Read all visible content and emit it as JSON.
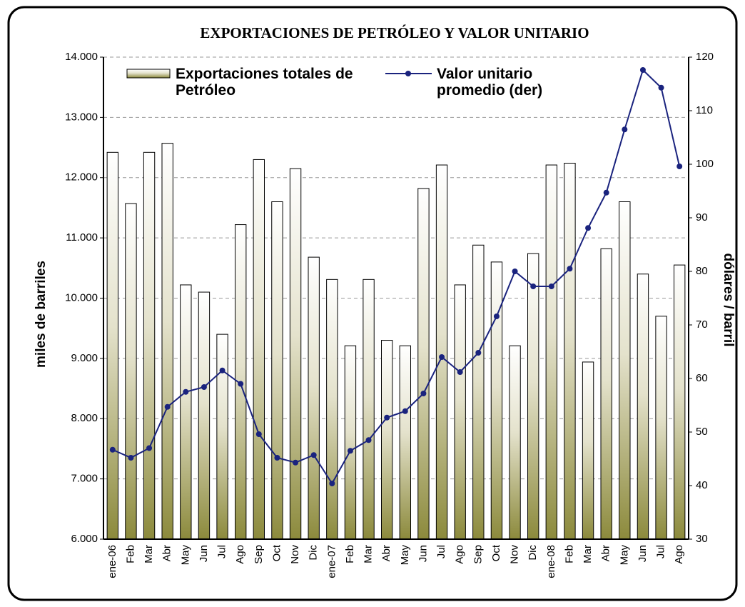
{
  "chart_data": {
    "type": "bar_line",
    "title": "EXPORTACIONES DE PETRÓLEO Y VALOR UNITARIO",
    "y_label": "miles de barriles",
    "y2_label": "dólares / barril",
    "categories": [
      "ene-06",
      "Feb",
      "Mar",
      "Abr",
      "May",
      "Jun",
      "Jul",
      "Ago",
      "Sep",
      "Oct",
      "Nov",
      "Dic",
      "ene-07",
      "Feb",
      "Mar",
      "Abr",
      "May",
      "Jun",
      "Jul",
      "Ago",
      "Sep",
      "Oct",
      "Nov",
      "Dic",
      "ene-08",
      "Feb",
      "Mar",
      "Abr",
      "May",
      "Jun",
      "Jul",
      "Ago"
    ],
    "series": [
      {
        "name": "Exportaciones totales de Petróleo",
        "type": "bar",
        "color": "#8c8a3c",
        "values": [
          12420,
          11570,
          12420,
          12570,
          10220,
          10100,
          9400,
          11220,
          12300,
          11600,
          12150,
          10680,
          10310,
          9210,
          10310,
          9300,
          9210,
          11820,
          12210,
          10220,
          10880,
          10600,
          9210,
          10740,
          12210,
          12240,
          8940,
          10820,
          11600,
          10400,
          9700,
          10550
        ]
      },
      {
        "name": "Valor unitario promedio (der)",
        "type": "line",
        "axis": "y2",
        "color": "#1a237e",
        "values": [
          46.7,
          45.2,
          47,
          54.7,
          57.5,
          58.4,
          61.5,
          59,
          49.6,
          45.2,
          44.3,
          45.7,
          40.4,
          46.5,
          48.5,
          52.7,
          53.9,
          57.2,
          64,
          61.2,
          64.8,
          71.6,
          80,
          77.2,
          77.2,
          80.5,
          88.1,
          94.7,
          106.5,
          117.6,
          114.3,
          99.6
        ]
      }
    ],
    "ylim": [
      6000,
      14000
    ],
    "yticks": [
      {
        "value": 6000,
        "label": "6.000"
      },
      {
        "value": 7000,
        "label": "7.000"
      },
      {
        "value": 8000,
        "label": "8.000"
      },
      {
        "value": 9000,
        "label": "9.000"
      },
      {
        "value": 10000,
        "label": "10.000"
      },
      {
        "value": 11000,
        "label": "11.000"
      },
      {
        "value": 12000,
        "label": "12.000"
      },
      {
        "value": 13000,
        "label": "13.000"
      },
      {
        "value": 14000,
        "label": "14.000"
      }
    ],
    "y2lim": [
      30,
      120
    ],
    "y2ticks": [
      30,
      40,
      50,
      60,
      70,
      80,
      90,
      100,
      110,
      120
    ],
    "grid": true
  }
}
